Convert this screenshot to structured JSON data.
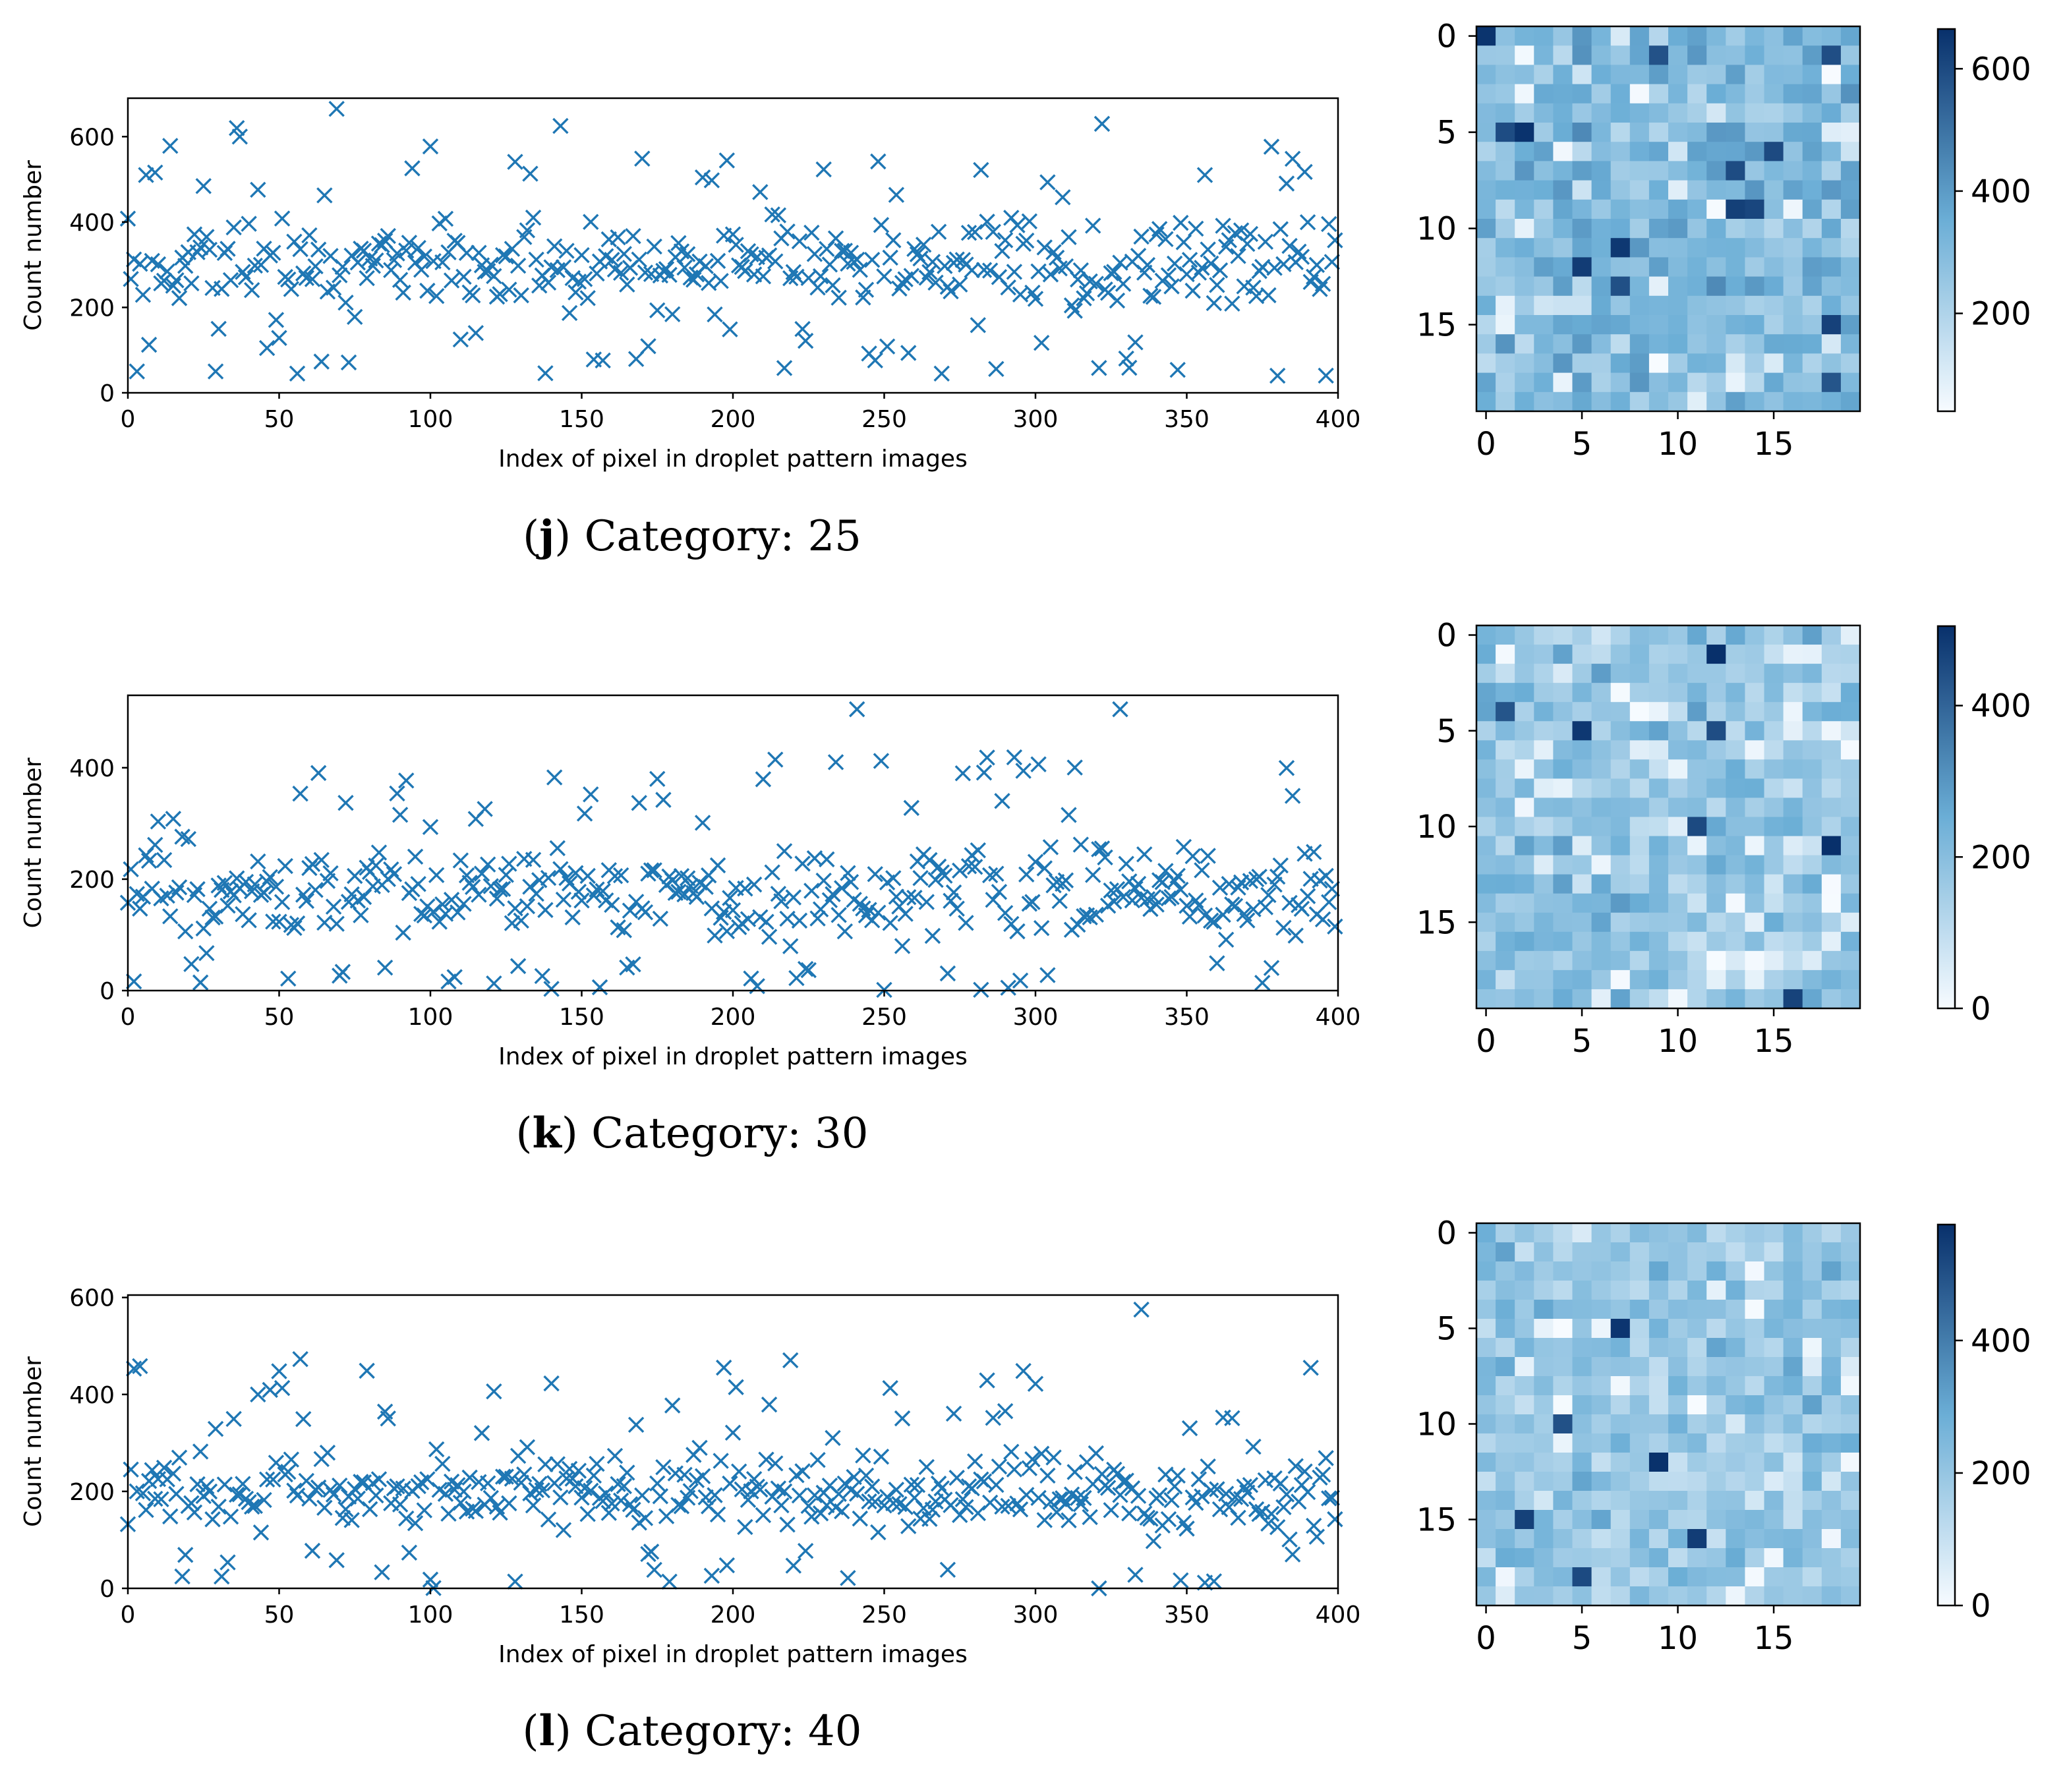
{
  "colors": {
    "marker": "#1f77b4",
    "cmap_low": "#f7fbff",
    "cmap_mid": "#6baed6",
    "cmap_high": "#08306b"
  },
  "chart_data": [
    {
      "id": "j",
      "type": "scatter",
      "caption_letter": "j",
      "caption_text": "Category: 25",
      "xlabel": "Index of pixel in droplet pattern images",
      "ylabel": "Count number",
      "xlim": [
        0,
        400
      ],
      "ylim": [
        0,
        690
      ],
      "xticks": [
        0,
        50,
        100,
        150,
        200,
        250,
        300,
        350,
        400
      ],
      "yticks": [
        0,
        200,
        400,
        600
      ],
      "marker": "x",
      "n_points": 400,
      "y_range_observed": [
        40,
        665
      ],
      "y_typical_band": [
        150,
        450
      ],
      "notable_points": [
        {
          "x": 36,
          "y": 620
        },
        {
          "x": 37,
          "y": 600
        },
        {
          "x": 69,
          "y": 665
        },
        {
          "x": 143,
          "y": 625
        },
        {
          "x": 322,
          "y": 630
        },
        {
          "x": 56,
          "y": 45
        },
        {
          "x": 269,
          "y": 45
        },
        {
          "x": 380,
          "y": 40
        }
      ],
      "heatmap": {
        "type": "heatmap",
        "shape": [
          20,
          20
        ],
        "cmap": "Blues",
        "xticks": [
          0,
          5,
          10,
          15
        ],
        "yticks": [
          0,
          5,
          10,
          15
        ],
        "colorbar_range": [
          40,
          665
        ],
        "colorbar_ticks": [
          200,
          400,
          600
        ]
      }
    },
    {
      "id": "k",
      "type": "scatter",
      "caption_letter": "k",
      "caption_text": "Category: 30",
      "xlabel": "Index of pixel in droplet pattern images",
      "ylabel": "Count number",
      "xlim": [
        0,
        400
      ],
      "ylim": [
        0,
        530
      ],
      "xticks": [
        0,
        50,
        100,
        150,
        200,
        250,
        300,
        350,
        400
      ],
      "yticks": [
        0,
        200,
        400
      ],
      "marker": "x",
      "n_points": 400,
      "y_range_observed": [
        0,
        505
      ],
      "y_typical_band": [
        50,
        300
      ],
      "notable_points": [
        {
          "x": 241,
          "y": 505
        },
        {
          "x": 328,
          "y": 505
        },
        {
          "x": 234,
          "y": 410
        },
        {
          "x": 276,
          "y": 390
        },
        {
          "x": 175,
          "y": 380
        }
      ],
      "heatmap": {
        "type": "heatmap",
        "shape": [
          20,
          20
        ],
        "cmap": "Blues",
        "xticks": [
          0,
          5,
          10,
          15
        ],
        "yticks": [
          0,
          5,
          10,
          15
        ],
        "colorbar_range": [
          0,
          505
        ],
        "colorbar_ticks": [
          0,
          200,
          400
        ]
      }
    },
    {
      "id": "l",
      "type": "scatter",
      "caption_letter": "l",
      "caption_text": "Category: 40",
      "xlabel": "Index of pixel in droplet pattern images",
      "ylabel": "Count number",
      "xlim": [
        0,
        400
      ],
      "ylim": [
        0,
        605
      ],
      "xticks": [
        0,
        50,
        100,
        150,
        200,
        250,
        300,
        350,
        400
      ],
      "yticks": [
        0,
        200,
        400,
        600
      ],
      "marker": "x",
      "n_points": 400,
      "y_range_observed": [
        0,
        575
      ],
      "y_typical_band": [
        80,
        320
      ],
      "notable_points": [
        {
          "x": 335,
          "y": 575
        },
        {
          "x": 391,
          "y": 455
        },
        {
          "x": 201,
          "y": 415
        },
        {
          "x": 43,
          "y": 400
        },
        {
          "x": 321,
          "y": 0
        }
      ],
      "heatmap": {
        "type": "heatmap",
        "shape": [
          20,
          20
        ],
        "cmap": "Blues",
        "xticks": [
          0,
          5,
          10,
          15
        ],
        "yticks": [
          0,
          5,
          10,
          15
        ],
        "colorbar_range": [
          0,
          575
        ],
        "colorbar_ticks": [
          0,
          200,
          400
        ]
      }
    }
  ]
}
